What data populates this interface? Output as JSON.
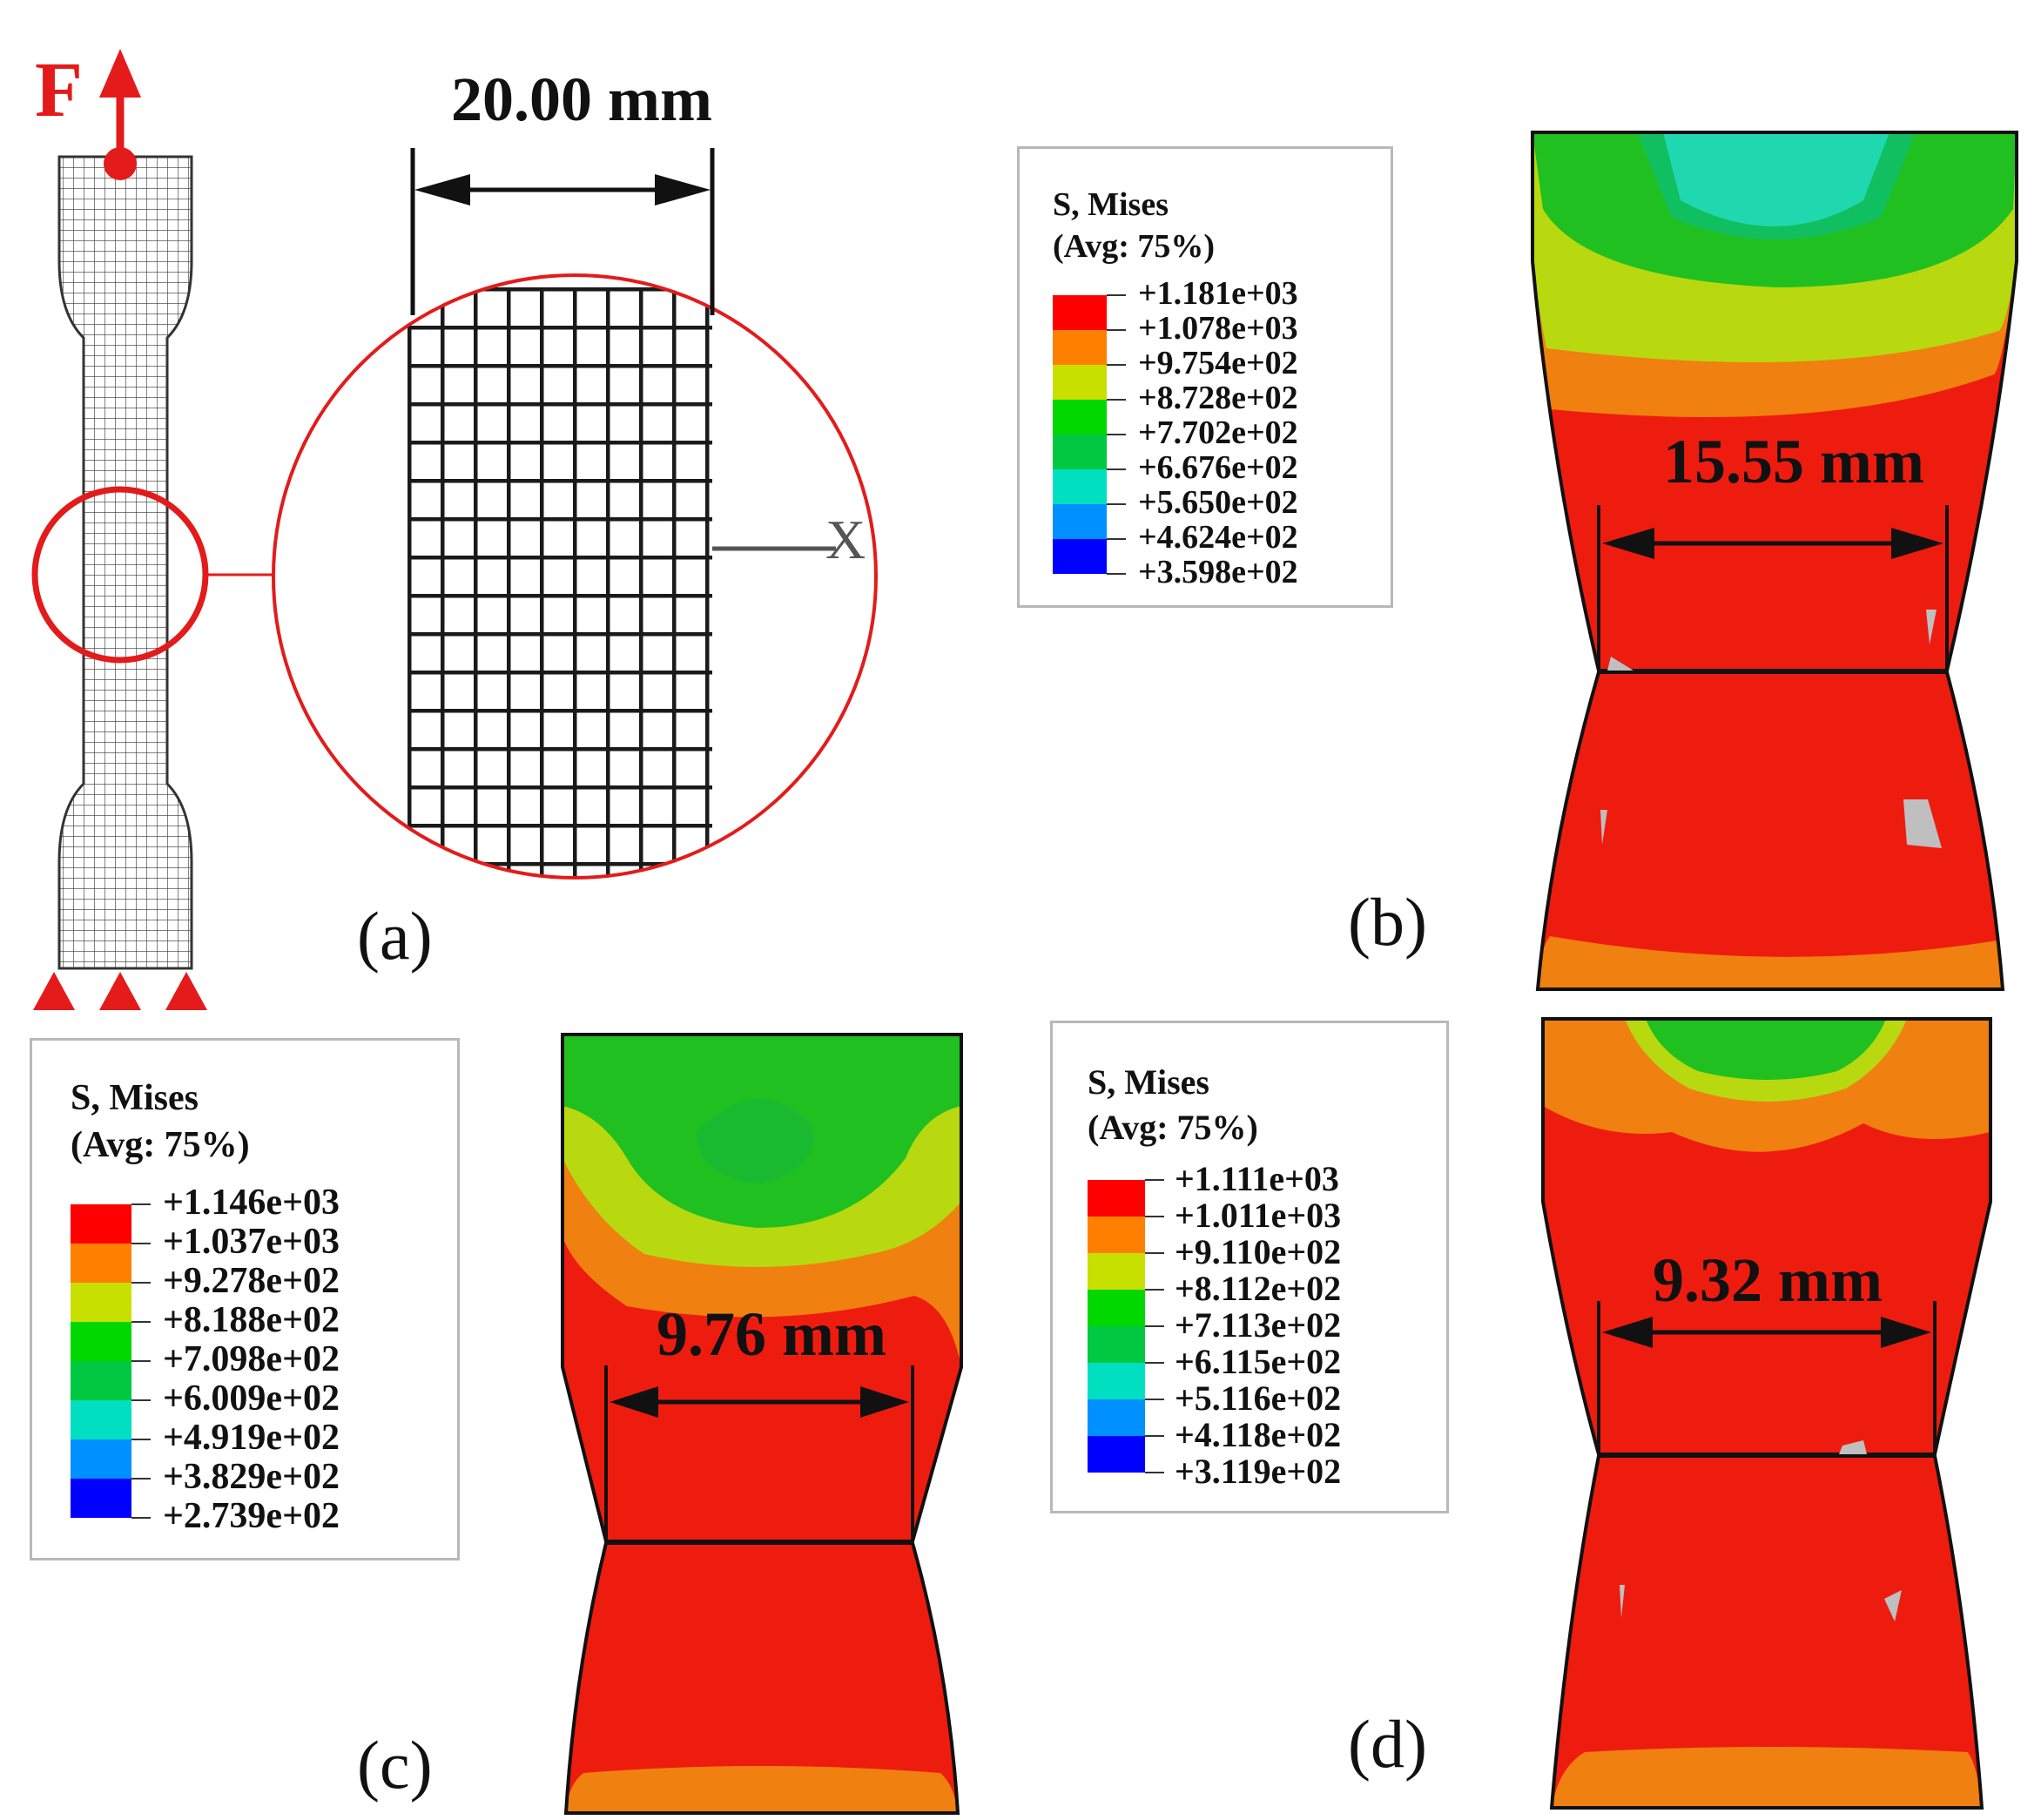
{
  "force_label": "F",
  "panel_a": {
    "label": "(a)",
    "zoom_dimension": "20.00 mm",
    "axis_label": "X"
  },
  "panel_b": {
    "label": "(b)",
    "dimension": "15.55 mm",
    "legend": {
      "title1": "S, Mises",
      "title2": "(Avg: 75%)",
      "values": [
        "+1.181e+03",
        "+1.078e+03",
        "+9.754e+02",
        "+8.728e+02",
        "+7.702e+02",
        "+6.676e+02",
        "+5.650e+02",
        "+4.624e+02",
        "+3.598e+02"
      ]
    }
  },
  "panel_c": {
    "label": "(c)",
    "dimension": "9.76 mm",
    "legend": {
      "title1": "S, Mises",
      "title2": "(Avg: 75%)",
      "values": [
        "+1.146e+03",
        "+1.037e+03",
        "+9.278e+02",
        "+8.188e+02",
        "+7.098e+02",
        "+6.009e+02",
        "+4.919e+02",
        "+3.829e+02",
        "+2.739e+02"
      ]
    }
  },
  "panel_d": {
    "label": "(d)",
    "dimension": "9.32 mm",
    "legend": {
      "title1": "S, Mises",
      "title2": "(Avg: 75%)",
      "values": [
        "+1.111e+03",
        "+1.011e+03",
        "+9.110e+02",
        "+8.112e+02",
        "+7.113e+02",
        "+6.115e+02",
        "+5.116e+02",
        "+4.118e+02",
        "+3.119e+02"
      ]
    }
  },
  "colors": {
    "accent_red": "#e31b1b",
    "stress_scale": [
      "#ff0000",
      "#ff8000",
      "#c8e000",
      "#00d800",
      "#00c840",
      "#00e0c0",
      "#0090ff",
      "#0000ff"
    ],
    "contour_red": "#ee1c0f",
    "contour_orange": "#f08010",
    "contour_yellowgreen": "#b8d810",
    "contour_green": "#20c020",
    "contour_cyan": "#20d8b0",
    "gray_element": "#bfbfbf"
  }
}
